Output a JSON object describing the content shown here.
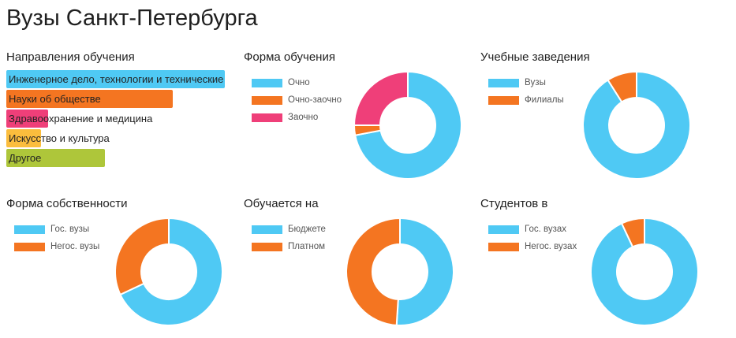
{
  "page": {
    "title": "Вузы Санкт-Петербурга"
  },
  "colors": {
    "blue": "#4fc9f4",
    "orange": "#f47521",
    "pink": "#ef3f79",
    "yellow": "#fbbd3d",
    "green": "#aec63a"
  },
  "chart_data": [
    {
      "id": "directions",
      "type": "bar",
      "title": "Направления обучения",
      "categories": [
        "Инженерное дело, технологии и технические науки",
        "Науки об обществе",
        "Здравоохранение и медицина",
        "Искусство и культура",
        "Другое"
      ],
      "values": [
        100,
        76,
        19,
        16,
        45
      ],
      "colors": [
        "#4fc9f4",
        "#f47521",
        "#ef3f79",
        "#fbbd3d",
        "#aec63a"
      ]
    },
    {
      "id": "study-form",
      "type": "pie",
      "title": "Форма обучения",
      "labels": [
        "Очно",
        "Очно-заочно",
        "Заочно"
      ],
      "values": [
        72,
        3,
        25
      ],
      "colors": [
        "#4fc9f4",
        "#f47521",
        "#ef3f79"
      ]
    },
    {
      "id": "institutions",
      "type": "pie",
      "title": "Учебные заведения",
      "labels": [
        "Вузы",
        "Филиалы"
      ],
      "values": [
        91,
        9
      ],
      "colors": [
        "#4fc9f4",
        "#f47521"
      ]
    },
    {
      "id": "ownership",
      "type": "pie",
      "title": "Форма собственности",
      "labels": [
        "Гос. вузы",
        "Негос. вузы"
      ],
      "values": [
        68,
        32
      ],
      "colors": [
        "#4fc9f4",
        "#f47521"
      ]
    },
    {
      "id": "funding",
      "type": "pie",
      "title": "Обучается на",
      "labels": [
        "Бюджете",
        "Платном"
      ],
      "values": [
        51,
        49
      ],
      "colors": [
        "#4fc9f4",
        "#f47521"
      ]
    },
    {
      "id": "students",
      "type": "pie",
      "title": "Студентов в",
      "labels": [
        "Гос. вузах",
        "Негос. вузах"
      ],
      "values": [
        93,
        7
      ],
      "colors": [
        "#4fc9f4",
        "#f47521"
      ]
    }
  ]
}
